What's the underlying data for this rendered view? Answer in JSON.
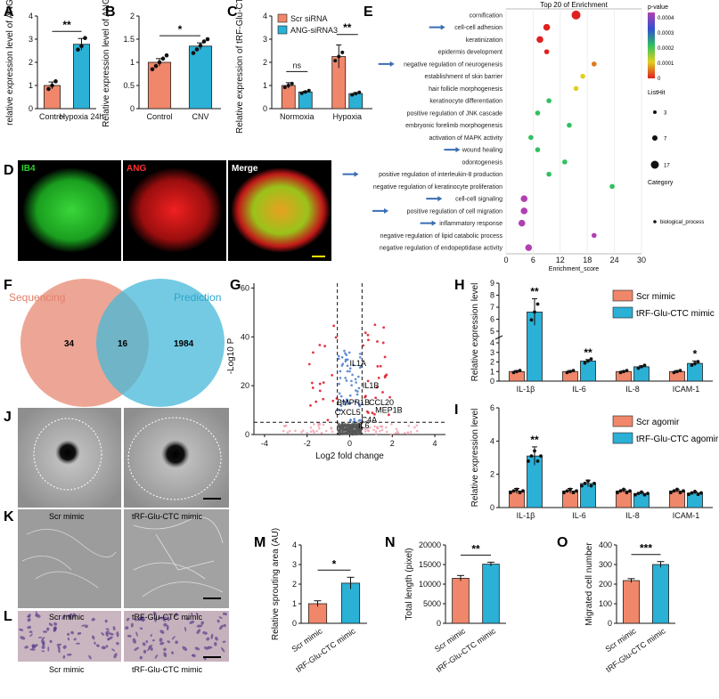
{
  "colors": {
    "control": "#f0876a",
    "treat": "#2bb0d6",
    "green": "#1ed11e",
    "red": "#e01414",
    "venn_left": "#e8907a",
    "venn_right": "#45b8d8",
    "micro_bg": "#a9a9a9",
    "stain_bg": "#c9b6c0",
    "stain_cells": "#5a3e8c"
  },
  "panels": {
    "A": "A",
    "B": "B",
    "C": "C",
    "D": "D",
    "E": "E",
    "F": "F",
    "G": "G",
    "H": "H",
    "I": "I",
    "J": "J",
    "K": "K",
    "L": "L",
    "M": "M",
    "N": "N",
    "O": "O"
  },
  "chart_data": [
    {
      "id": "A",
      "type": "bar",
      "categories": [
        "Control",
        "Hypoxia 24h"
      ],
      "values": [
        1.0,
        2.78
      ],
      "errors": [
        0.15,
        0.25
      ],
      "points": [
        [
          0.85,
          1.0,
          1.18
        ],
        [
          2.55,
          2.7,
          3.05
        ]
      ],
      "ylabel": "relative expression level of  ANG",
      "ylim": [
        0,
        4
      ],
      "yticks": [
        0,
        1,
        2,
        3,
        4
      ],
      "significance": "**"
    },
    {
      "id": "B",
      "type": "bar",
      "categories": [
        "Control",
        "CNV"
      ],
      "values": [
        1.0,
        1.35
      ],
      "errors": [
        0.08,
        0.07
      ],
      "points": [
        [
          0.85,
          0.92,
          1.0,
          1.08,
          1.15
        ],
        [
          1.2,
          1.28,
          1.36,
          1.45,
          1.5
        ]
      ],
      "ylabel": "Relative expression level of ANG",
      "ylim": [
        0,
        2.0
      ],
      "yticks": [
        0.0,
        0.5,
        1.0,
        1.5,
        2.0
      ],
      "significance": "*"
    },
    {
      "id": "C",
      "type": "bar",
      "groups": [
        "Normoxia",
        "Hypoxia"
      ],
      "series": [
        {
          "name": "Scr siRNA",
          "values": [
            1.0,
            2.25
          ],
          "errors": [
            0.12,
            0.5
          ]
        },
        {
          "name": "ANG-siRNA3",
          "values": [
            0.72,
            0.65
          ],
          "errors": [
            0.03,
            0.04
          ]
        }
      ],
      "ylabel": "Relative expression of tRF-Glu-CTC",
      "ylim": [
        0,
        4
      ],
      "yticks": [
        0,
        1,
        2,
        3,
        4
      ],
      "significance": [
        "ns",
        "**"
      ]
    },
    {
      "id": "E",
      "type": "scatter",
      "title": "Top 20 of   Enrichment",
      "xlabel": "Enrichment_score",
      "xlim": [
        0,
        30
      ],
      "xticks": [
        0,
        6,
        12,
        18,
        24,
        30
      ],
      "terms": [
        {
          "name": "cornification",
          "score": 15.5,
          "p": 0.0,
          "size": 17,
          "arrow": false
        },
        {
          "name": "cell-cell adhesion",
          "score": 9.0,
          "p": 0.0,
          "size": 7,
          "arrow": true
        },
        {
          "name": "keratinization",
          "score": 7.5,
          "p": 0.0,
          "size": 7,
          "arrow": false
        },
        {
          "name": "epidermis development",
          "score": 9.0,
          "p": 0.0,
          "size": 3,
          "arrow": false
        },
        {
          "name": "negative regulation of neurogenesis",
          "score": 19.5,
          "p": 5e-05,
          "size": 3,
          "arrow": true
        },
        {
          "name": "establishment of skin barrier",
          "score": 17.0,
          "p": 0.0001,
          "size": 3,
          "arrow": false
        },
        {
          "name": "hair follicle morphogenesis",
          "score": 15.5,
          "p": 0.0001,
          "size": 3,
          "arrow": false
        },
        {
          "name": "keratinocyte differentiation",
          "score": 9.5,
          "p": 0.0002,
          "size": 3,
          "arrow": false
        },
        {
          "name": "positive regulation of JNK cascade",
          "score": 7.0,
          "p": 0.0002,
          "size": 3,
          "arrow": false
        },
        {
          "name": "embryonic forelimb morphogenesis",
          "score": 14.0,
          "p": 0.0002,
          "size": 3,
          "arrow": false
        },
        {
          "name": "activation of MAPK activity",
          "score": 5.5,
          "p": 0.0002,
          "size": 3,
          "arrow": false
        },
        {
          "name": "wound healing",
          "score": 7.0,
          "p": 0.0002,
          "size": 3,
          "arrow": true
        },
        {
          "name": "odontogenesis",
          "score": 13.0,
          "p": 0.0002,
          "size": 3,
          "arrow": false
        },
        {
          "name": "positive regulation of interleukin-8 production",
          "score": 9.5,
          "p": 0.0002,
          "size": 3,
          "arrow": true
        },
        {
          "name": "negative regulation of keratinocyte proliferation",
          "score": 23.5,
          "p": 0.0002,
          "size": 3,
          "arrow": false
        },
        {
          "name": "cell-cell signaling",
          "score": 4.0,
          "p": 0.0004,
          "size": 7,
          "arrow": true
        },
        {
          "name": "positive regulation of cell migration",
          "score": 4.0,
          "p": 0.0004,
          "size": 7,
          "arrow": true
        },
        {
          "name": "inflammatory response",
          "score": 3.5,
          "p": 0.0004,
          "size": 7,
          "arrow": true
        },
        {
          "name": "negative regulation of lipid catabolic process",
          "score": 19.5,
          "p": 0.00045,
          "size": 3,
          "arrow": false
        },
        {
          "name": "negative regulation of endopeptidase activity",
          "score": 5.0,
          "p": 0.00045,
          "size": 7,
          "arrow": false
        }
      ],
      "legend": {
        "pvalue_title": "p-value",
        "pvalue_ticks": [
          "0.0004",
          "0.0003",
          "0.0002",
          "0.0001",
          "0"
        ],
        "listhit_title": "ListHit",
        "listhit_values": [
          "3",
          "7",
          "17"
        ],
        "category_title": "Category",
        "category_value": "biological_process"
      }
    },
    {
      "id": "G",
      "type": "scatter",
      "xlabel": "Log2 fold change",
      "ylabel": "-Log10 P",
      "xlim": [
        -4.5,
        4.5
      ],
      "xticks": [
        -4,
        -2,
        0,
        2,
        4
      ],
      "ylim": [
        0,
        62
      ],
      "yticks": [
        0,
        20,
        40,
        60
      ],
      "thresholds": {
        "fc": [
          -0.58,
          0.58
        ],
        "p": 5
      },
      "labels": [
        "IL1A",
        "IL1B",
        "CCL20",
        "BMPR1B",
        "CXCL5",
        "MEP1B",
        "C4A",
        "IL6"
      ]
    },
    {
      "id": "H",
      "type": "bar",
      "categories": [
        "IL-1β",
        "IL-6",
        "IL-8",
        "ICAM-1"
      ],
      "series": [
        {
          "name": "Scr mimic",
          "values": [
            1.0,
            1.0,
            1.0,
            1.0
          ],
          "errors": [
            0.1,
            0.1,
            0.05,
            0.1
          ]
        },
        {
          "name": "tRF-Glu-CTC mimic",
          "values": [
            6.6,
            2.1,
            1.5,
            1.85
          ],
          "errors": [
            1.1,
            0.15,
            0.1,
            0.25
          ]
        }
      ],
      "ylabel": "Relative expression level",
      "yticks_lower": [
        0,
        1,
        2,
        3,
        4
      ],
      "yticks_upper": [
        5,
        6,
        7,
        8,
        9
      ],
      "significance": [
        "**",
        "**",
        "",
        "*"
      ]
    },
    {
      "id": "I",
      "type": "bar",
      "categories": [
        "IL-1β",
        "IL-6",
        "IL-8",
        "ICAM-1"
      ],
      "series": [
        {
          "name": "Scr agomir",
          "values": [
            1.0,
            1.0,
            1.0,
            1.0
          ],
          "errors": [
            0.15,
            0.15,
            0.08,
            0.08
          ]
        },
        {
          "name": "tRF-Glu-CTC agomir",
          "values": [
            3.1,
            1.45,
            0.85,
            0.88
          ],
          "errors": [
            0.55,
            0.2,
            0.06,
            0.06
          ]
        }
      ],
      "ylabel": "Relative expression level",
      "ylim": [
        0,
        6
      ],
      "yticks": [
        0,
        2,
        4,
        6
      ],
      "significance": [
        "**",
        "",
        "",
        ""
      ]
    },
    {
      "id": "M",
      "type": "bar",
      "categories": [
        "Scr mimic",
        "tRF-Glu-CTC mimic"
      ],
      "values": [
        1.0,
        2.05
      ],
      "errors": [
        0.15,
        0.3
      ],
      "ylabel": "Relative sprouting area (AU)",
      "ylim": [
        0,
        4
      ],
      "yticks": [
        0,
        1,
        2,
        3,
        4
      ],
      "significance": "*"
    },
    {
      "id": "N",
      "type": "bar",
      "categories": [
        "Scr mimic",
        "tRF-Glu-CTC mimic"
      ],
      "values": [
        11500,
        15100
      ],
      "errors": [
        700,
        500
      ],
      "ylabel": "Total length (pixel)",
      "ylim": [
        0,
        20000
      ],
      "yticks": [
        0,
        5000,
        10000,
        15000,
        20000
      ],
      "significance": "**"
    },
    {
      "id": "O",
      "type": "bar",
      "categories": [
        "Scr mimic",
        "tRF-Glu-CTC mimic"
      ],
      "values": [
        218,
        300
      ],
      "errors": [
        10,
        15
      ],
      "ylabel": "Migrated cell number",
      "ylim": [
        0,
        400
      ],
      "yticks": [
        0,
        100,
        200,
        300,
        400
      ],
      "significance": "***"
    }
  ],
  "panel_d": {
    "labels": [
      "IB4",
      "ANG",
      "Merge"
    ]
  },
  "panel_f": {
    "left_title": "Sequencing",
    "right_title": "Prediction",
    "left_only": "34",
    "overlap": "16",
    "right_only": "1984"
  },
  "panel_jkl": {
    "left_caption": "Scr mimic",
    "right_caption": "tRF-Glu-CTC mimic"
  }
}
